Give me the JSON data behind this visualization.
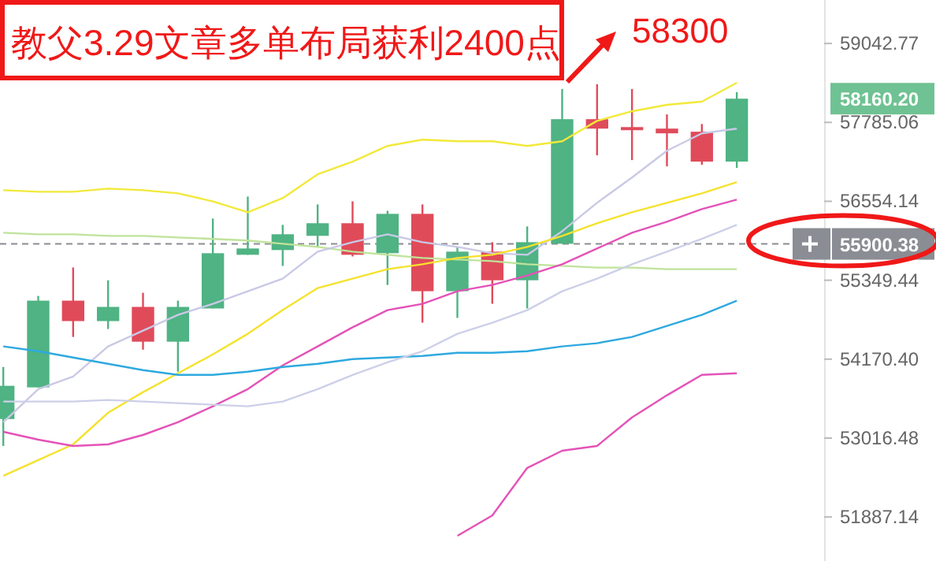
{
  "chart_data": {
    "type": "candlestick",
    "title": "教父3.29文章多单布局获利2400点",
    "categories": [
      null,
      null,
      null,
      null,
      null,
      null,
      null,
      null,
      null,
      null,
      null,
      null,
      null,
      null,
      null,
      null,
      null,
      null,
      null,
      null,
      null,
      null,
      null,
      null
    ],
    "ohlc": [
      [
        53293,
        54055,
        52903,
        53778
      ],
      [
        53755,
        55113,
        53755,
        55042
      ],
      [
        55042,
        55542,
        54500,
        54736
      ],
      [
        54736,
        55349,
        54618,
        54948
      ],
      [
        54948,
        55160,
        54311,
        54429
      ],
      [
        54429,
        55042,
        53985,
        54948
      ],
      [
        54925,
        56289,
        54925,
        55759
      ],
      [
        55735,
        56628,
        55735,
        55831
      ],
      [
        55807,
        56192,
        55566,
        56048
      ],
      [
        56024,
        56506,
        55855,
        56217
      ],
      [
        56217,
        56554,
        55710,
        55735
      ],
      [
        55759,
        56409,
        55278,
        56361
      ],
      [
        56361,
        56506,
        54712,
        55184
      ],
      [
        55184,
        55855,
        54783,
        55783
      ],
      [
        55783,
        55927,
        54995,
        55349
      ],
      [
        55349,
        56168,
        54925,
        55927
      ],
      [
        55903,
        58314,
        55903,
        57836
      ],
      [
        57836,
        58389,
        57268,
        57687
      ],
      [
        57711,
        58314,
        57194,
        57662
      ],
      [
        57687,
        57911,
        57096,
        57613
      ],
      [
        57638,
        57760,
        57120,
        57170
      ],
      [
        57170,
        58263,
        57071,
        58160
      ],
      null,
      null
    ],
    "colors": [
      "#4fb383",
      "#4fb383",
      "#e04b5a",
      "#4fb383",
      "#e04b5a",
      "#4fb383",
      "#4fb383",
      "#4fb383",
      "#4fb383",
      "#4fb383",
      "#e04b5a",
      "#4fb383",
      "#e04b5a",
      "#4fb383",
      "#e04b5a",
      "#4fb383",
      "#4fb383",
      "#e04b5a",
      "#e04b5a",
      "#e04b5a",
      "#e04b5a",
      "#4fb383",
      null,
      null
    ],
    "series": [
      {
        "type": "line",
        "color": "#f2e93a",
        "values": [
          56726,
          56702,
          56702,
          56751,
          56726,
          56677,
          56554,
          56385,
          56603,
          56973,
          57170,
          57416,
          57514,
          57490,
          57490,
          57416,
          57490,
          57810,
          57961,
          58062,
          58112,
          58414,
          null,
          null
        ]
      },
      {
        "type": "line",
        "color": "#bfe39a",
        "values": [
          56072,
          56048,
          56048,
          56024,
          56024,
          55999,
          55976,
          55952,
          55903,
          55855,
          55783,
          55735,
          55686,
          55662,
          55638,
          55590,
          55566,
          55542,
          55542,
          55518,
          55518,
          55518,
          null,
          null
        ]
      },
      {
        "type": "line",
        "color": "#c9c9e6",
        "values": [
          53247,
          53731,
          53916,
          54359,
          54594,
          54830,
          54995,
          55184,
          55373,
          55783,
          55927,
          56048,
          55927,
          55855,
          55759,
          55735,
          56096,
          56530,
          56923,
          57342,
          57613,
          57687,
          null,
          null
        ]
      },
      {
        "type": "line",
        "color": "#f5e22e",
        "values": [
          52474,
          52700,
          52926,
          53385,
          53685,
          53962,
          54241,
          54547,
          54901,
          55231,
          55373,
          55518,
          55590,
          55686,
          55735,
          55855,
          56024,
          56217,
          56385,
          56530,
          56677,
          56849,
          null,
          null
        ]
      },
      {
        "type": "line",
        "color": "#e452b8",
        "values": [
          53108,
          52993,
          52903,
          52926,
          53062,
          53247,
          53478,
          53731,
          54078,
          54359,
          54642,
          54901,
          54995,
          55184,
          55278,
          55421,
          55590,
          55831,
          56072,
          56241,
          56433,
          56579,
          null,
          null
        ]
      },
      {
        "type": "line",
        "color": "#2ea9df",
        "values": [
          54359,
          54288,
          54194,
          54101,
          54008,
          53939,
          53939,
          53985,
          54055,
          54101,
          54170,
          54194,
          54217,
          54264,
          54264,
          54288,
          54359,
          54406,
          54500,
          54665,
          54830,
          55042,
          null,
          null
        ]
      },
      {
        "type": "line",
        "color": "#cdd0e8",
        "values": [
          53547,
          53547,
          53547,
          53570,
          53547,
          53524,
          53501,
          53478,
          53547,
          53731,
          53939,
          54124,
          54288,
          54547,
          54712,
          54901,
          55184,
          55373,
          55590,
          55783,
          55976,
          56192,
          null,
          null
        ]
      },
      {
        "type": "line",
        "color": "#e452b8",
        "values": [
          null,
          null,
          null,
          null,
          null,
          null,
          null,
          null,
          null,
          null,
          null,
          null,
          null,
          51622,
          51910,
          52587,
          52835,
          52903,
          53316,
          53639,
          53939,
          53962,
          null,
          null
        ]
      }
    ],
    "log": true,
    "ylim": [
      51268,
      59747
    ],
    "yticks": [
      59042.77,
      57785.06,
      56554.14,
      55349.44,
      {
        "value": 54170.4,
        "label": "54170.40"
      },
      53016.48,
      51887.14
    ],
    "tick_labels": "y",
    "ref_lines": [
      {
        "axis": "y",
        "value": 55900.38,
        "label": "55900.38",
        "color": "#8a8d93",
        "line_style": "dashed"
      }
    ],
    "annotations": [
      "58300",
      "58160.20"
    ]
  }
}
